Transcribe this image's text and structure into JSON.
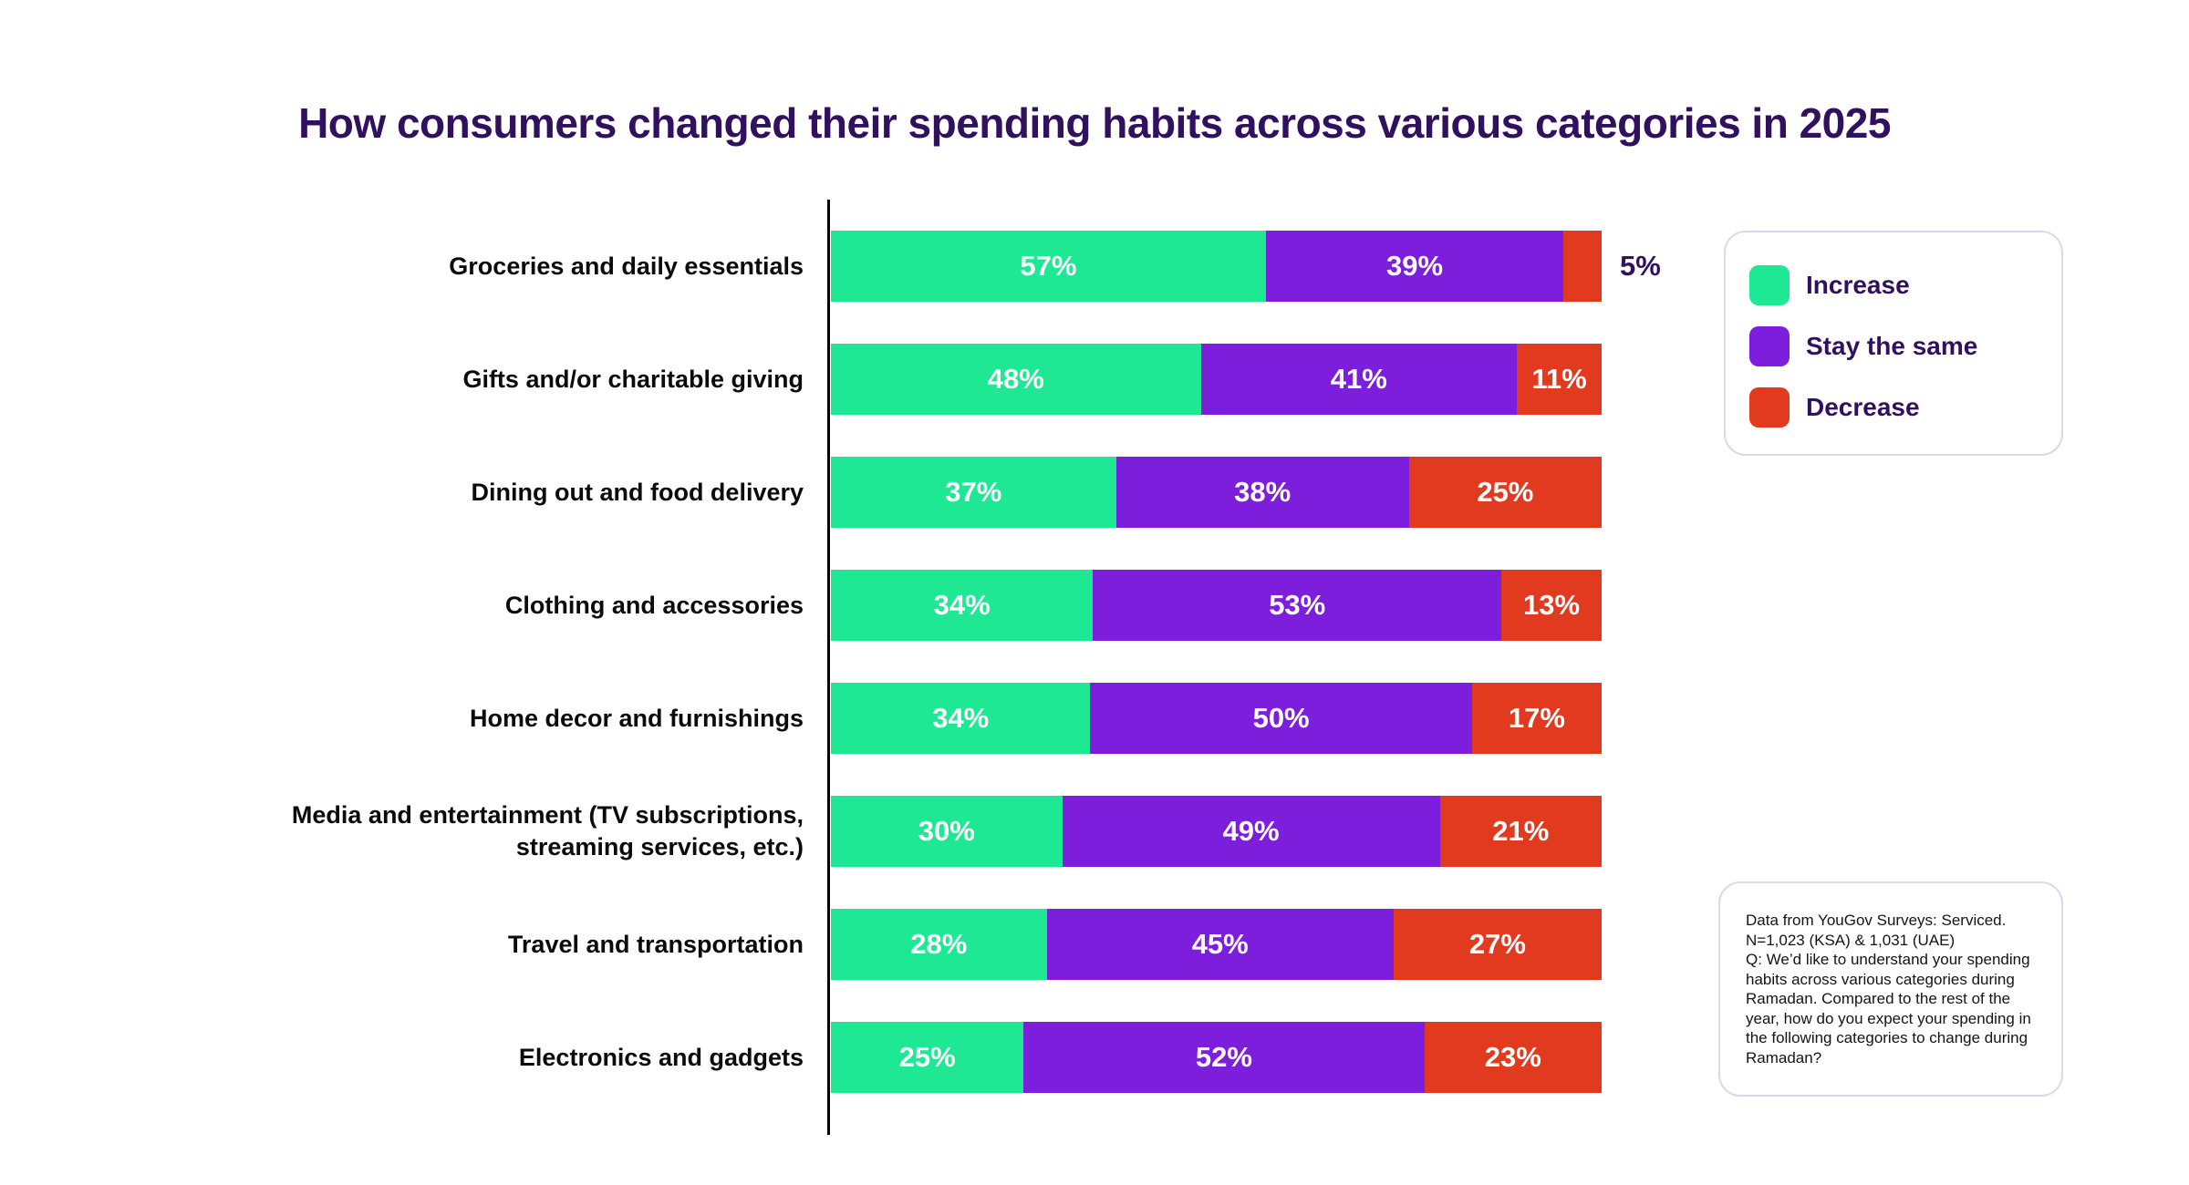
{
  "title": "How consumers changed their spending habits across various categories in 2025",
  "colors": {
    "increase": "#1EE894",
    "stay_the_same": "#7C1EDB",
    "decrease": "#E13A1E",
    "title_text": "#321060",
    "category_text": "#0B0B0B",
    "panel_border": "#DDD6EC",
    "axis_line": "#000000",
    "inside_value_text": "#FFFFFF"
  },
  "legend": {
    "items": [
      {
        "label": "Increase",
        "color": "#1EE894"
      },
      {
        "label": "Stay the same",
        "color": "#7C1EDB"
      },
      {
        "label": "Decrease",
        "color": "#E13A1E"
      }
    ]
  },
  "footnote": {
    "text": "Data from YouGov Surveys: Serviced.\nN=1,023 (KSA) & 1,031 (UAE)\nQ: We’d like to understand your spending habits across various categories during Ramadan. Compared to the rest of the year, how do you expect your spending in the following categories to change during Ramadan?"
  },
  "chart_data": {
    "type": "bar",
    "orientation": "horizontal",
    "stacked": true,
    "title": "How consumers changed their spending habits across various categories in 2025",
    "value_unit": "%",
    "categories": [
      "Groceries and daily essentials",
      "Gifts and/or charitable giving",
      "Dining out and food delivery",
      "Clothing and accessories",
      "Home decor and furnishings",
      "Media and entertainment (TV subscriptions, streaming services, etc.)",
      "Travel and transportation",
      "Electronics and gadgets"
    ],
    "series": [
      {
        "name": "Increase",
        "color": "#1EE894",
        "values": [
          57,
          48,
          37,
          34,
          34,
          30,
          28,
          25
        ]
      },
      {
        "name": "Stay the same",
        "color": "#7C1EDB",
        "values": [
          39,
          41,
          38,
          53,
          50,
          49,
          45,
          52
        ]
      },
      {
        "name": "Decrease",
        "color": "#E13A1E",
        "values": [
          5,
          11,
          25,
          13,
          17,
          21,
          27,
          23
        ]
      }
    ],
    "data_labels": "value% shown inside each segment in white; segments under 8% labelled outside the bar end in dark purple",
    "axes": "single black vertical baseline at left of bars; no x-axis ticks or gridlines",
    "xlim": [
      0,
      100
    ],
    "grid": false,
    "legend_position": "top-right bordered panel"
  }
}
